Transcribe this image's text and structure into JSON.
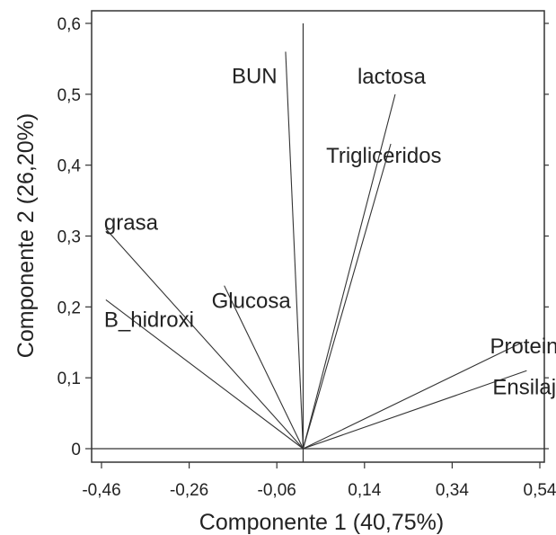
{
  "chart_data": {
    "type": "biplot",
    "xlabel": "Componente 1 (40,75%)",
    "ylabel": "Componente 2 (26,20%)",
    "xlim": [
      -0.48,
      0.55
    ],
    "ylim": [
      -0.02,
      0.62
    ],
    "xticks": [
      -0.46,
      -0.26,
      -0.06,
      0.14,
      0.34,
      0.54
    ],
    "yticks": [
      0,
      0.1,
      0.2,
      0.3,
      0.4,
      0.5,
      0.6
    ],
    "xtick_labels": [
      "-0,46",
      "-0,26",
      "-0,06",
      "0,14",
      "0,34",
      "0,54"
    ],
    "ytick_labels": [
      "0",
      "0,1",
      "0,2",
      "0,3",
      "0,4",
      "0,5",
      "0,6"
    ],
    "colors": {
      "lines": "#333333",
      "text": "#222222",
      "frame": "#333333"
    },
    "vectors": [
      {
        "name": "BUN",
        "x": -0.04,
        "y": 0.56
      },
      {
        "name": "lactosa",
        "x": 0.21,
        "y": 0.5
      },
      {
        "name": "Trigliceridos",
        "x": 0.2,
        "y": 0.43
      },
      {
        "name": "grasa",
        "x": -0.45,
        "y": 0.31
      },
      {
        "name": "Glucosa",
        "x": -0.18,
        "y": 0.23
      },
      {
        "name": "B_hidroxi",
        "x": -0.45,
        "y": 0.21
      },
      {
        "name": "Proteina",
        "x": 0.5,
        "y": 0.15
      },
      {
        "name": "Ensilaje",
        "x": 0.51,
        "y": 0.11
      }
    ]
  }
}
